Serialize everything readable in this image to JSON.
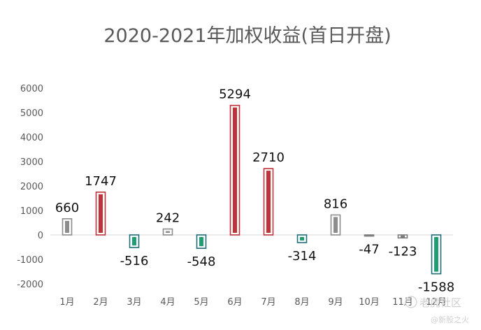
{
  "chart_data": {
    "type": "bar",
    "title": "2020-2021年加权收益(首日开盘)",
    "xlabel": "",
    "ylabel": "",
    "categories": [
      "1月",
      "2月",
      "3月",
      "4月",
      "5月",
      "6月",
      "7月",
      "8月",
      "9月",
      "10月",
      "11月",
      "12月"
    ],
    "values": [
      660,
      1747,
      -516,
      242,
      -548,
      5294,
      2710,
      -314,
      816,
      -47,
      -123,
      -1588
    ],
    "data_labels": [
      "660",
      "1747",
      "-516",
      "242",
      "-548",
      "5294",
      "2710",
      "-314",
      "816",
      "-47",
      "-123",
      "-1588"
    ],
    "ylim": [
      -2000,
      6000
    ],
    "yticks": [
      6000,
      5000,
      4000,
      3000,
      2000,
      1000,
      0,
      -1000,
      -2000
    ],
    "ytick_labels": [
      "6000",
      "5000",
      "4000",
      "3000",
      "2000",
      "1000",
      "0",
      "-1000",
      "-2000"
    ],
    "grid": false,
    "legend": "none",
    "colors": {
      "positive_large": "#c0313a",
      "positive_small": "#8c8c8c",
      "negative_large": "#1e9e74",
      "negative_small": "#7a7a7a",
      "negative_outline": "#1f6e7a"
    }
  },
  "watermark": {
    "brand": "老虎社区",
    "sub": "@新股之火"
  }
}
